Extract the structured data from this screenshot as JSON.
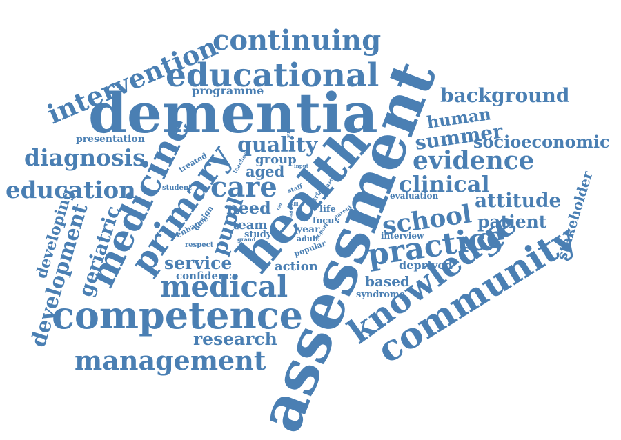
{
  "cloud": {
    "color": "#4a7fb3",
    "words": {
      "assessment": "assessment",
      "dementia": "dementia",
      "health": "health",
      "educational": "educational",
      "continuing": "continuing",
      "intervention": "intervention",
      "competence": "competence",
      "community": "community",
      "knowledge": "knowledge",
      "medicine": "medicine",
      "primary": "primary",
      "management": "management",
      "medical": "medical",
      "practice": "practice",
      "education": "education",
      "diagnosis": "diagnosis",
      "care": "care",
      "school": "school",
      "evidence": "evidence",
      "clinical": "clinical",
      "background": "background",
      "socioeconomic": "socioeconomic",
      "development": "development",
      "geriatric": "geriatric",
      "developing": "developing",
      "quality": "quality",
      "summer": "summer",
      "human": "human",
      "attitude": "attitude",
      "patient": "patient",
      "stakeholder": "stakeholder",
      "research": "research",
      "service": "service",
      "confidence": "confidence",
      "based": "based",
      "syndrome": "syndrome",
      "deprived": "deprived",
      "interview": "interview",
      "evaluation": "evaluation",
      "need": "need",
      "team": "team",
      "aged": "aged",
      "group": "group",
      "pupil": "pupil",
      "programme": "programme",
      "presentation": "presentation",
      "action": "action",
      "study": "study",
      "year": "year",
      "focus": "focus",
      "adult": "adult",
      "popular": "popular",
      "life": "life",
      "respect": "respect",
      "enhance": "enhance",
      "design": "design",
      "teacher": "teacher",
      "treated": "treated",
      "student": "student",
      "staff": "staff",
      "grand": "grand",
      "trial": "trial",
      "phase": "phase",
      "parent": "parent",
      "report": "report",
      "success": "success",
      "input": "input",
      "skill": "skill",
      "old": "old",
      "lead": "lead"
    }
  }
}
